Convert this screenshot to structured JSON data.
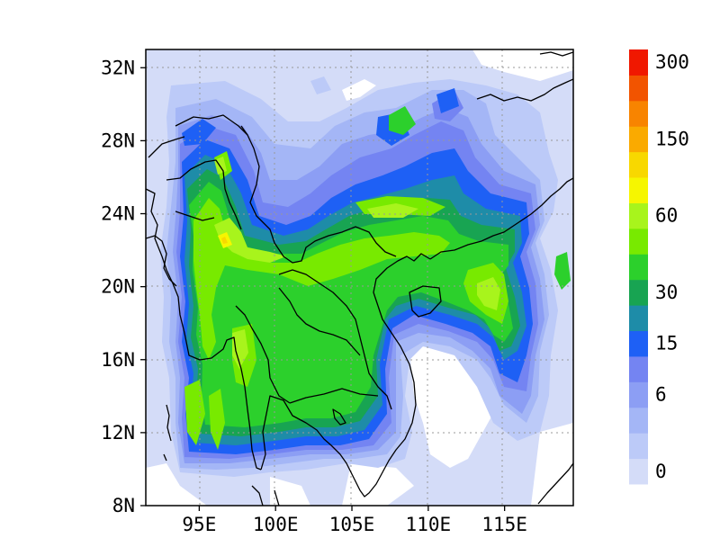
{
  "map": {
    "lat_range": [
      8,
      33
    ],
    "lon_range": [
      91.5,
      119.5
    ],
    "lat_ticks": [
      {
        "value": 32,
        "label": "32N"
      },
      {
        "value": 28,
        "label": "28N"
      },
      {
        "value": 24,
        "label": "24N"
      },
      {
        "value": 20,
        "label": "20N"
      },
      {
        "value": 16,
        "label": "16N"
      },
      {
        "value": 12,
        "label": "12N"
      },
      {
        "value": 8,
        "label": "8N"
      }
    ],
    "lon_ticks": [
      {
        "value": 95,
        "label": "95E"
      },
      {
        "value": 100,
        "label": "100E"
      },
      {
        "value": 105,
        "label": "105E"
      },
      {
        "value": 110,
        "label": "110E"
      },
      {
        "value": 115,
        "label": "115E"
      }
    ],
    "gridlines": true
  },
  "colorbar": {
    "colors": [
      "#d4dcf8",
      "#bccaf8",
      "#a4b6f6",
      "#8c9ef4",
      "#7484f2",
      "#1e60f5",
      "#1e8ca8",
      "#18a452",
      "#2cd02c",
      "#78ea00",
      "#a8f41c",
      "#f6f600",
      "#f8d800",
      "#faaa00",
      "#f88400",
      "#f25400",
      "#f01800"
    ],
    "labels": [
      {
        "index": 0,
        "text": "0"
      },
      {
        "index": 3,
        "text": "6"
      },
      {
        "index": 5,
        "text": "15"
      },
      {
        "index": 7,
        "text": "30"
      },
      {
        "index": 10,
        "text": "60"
      },
      {
        "index": 13,
        "text": "150"
      },
      {
        "index": 16,
        "text": "300"
      }
    ]
  }
}
